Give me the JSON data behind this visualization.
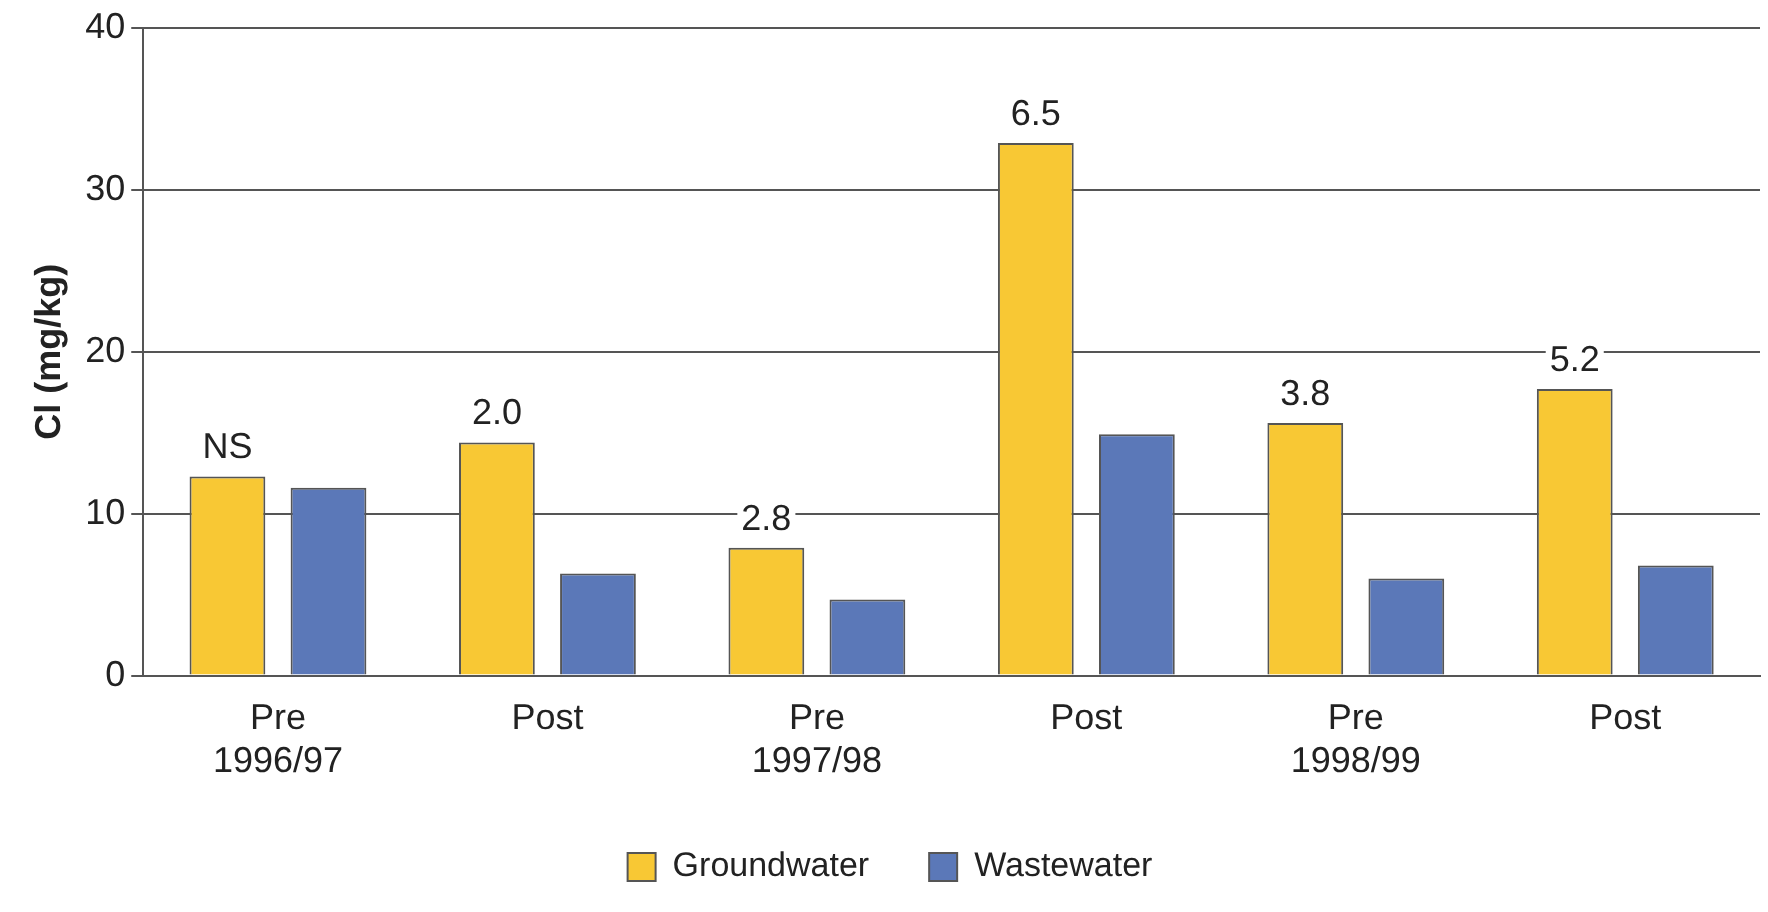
{
  "chart_data": {
    "type": "bar",
    "ylabel": "Cl (mg/kg)",
    "categories": [
      "Pre\n1996/97",
      "Post",
      "Pre\n1997/98",
      "Post",
      "Pre\n1998/99",
      "Post"
    ],
    "series": [
      {
        "name": "Groundwater",
        "color": "#f8c834",
        "values": [
          12.3,
          14.4,
          7.9,
          32.9,
          15.6,
          17.7
        ]
      },
      {
        "name": "Wastewater",
        "color": "#5b78b8",
        "values": [
          11.6,
          6.3,
          4.7,
          14.9,
          6.0,
          6.8
        ]
      }
    ],
    "annotations": [
      "NS",
      "2.0",
      "2.8",
      "6.5",
      "3.8",
      "5.2"
    ],
    "ylim": [
      0,
      40
    ],
    "yticks": [
      0,
      10,
      20,
      30,
      40
    ],
    "grid": "y",
    "legend": "bottom"
  }
}
